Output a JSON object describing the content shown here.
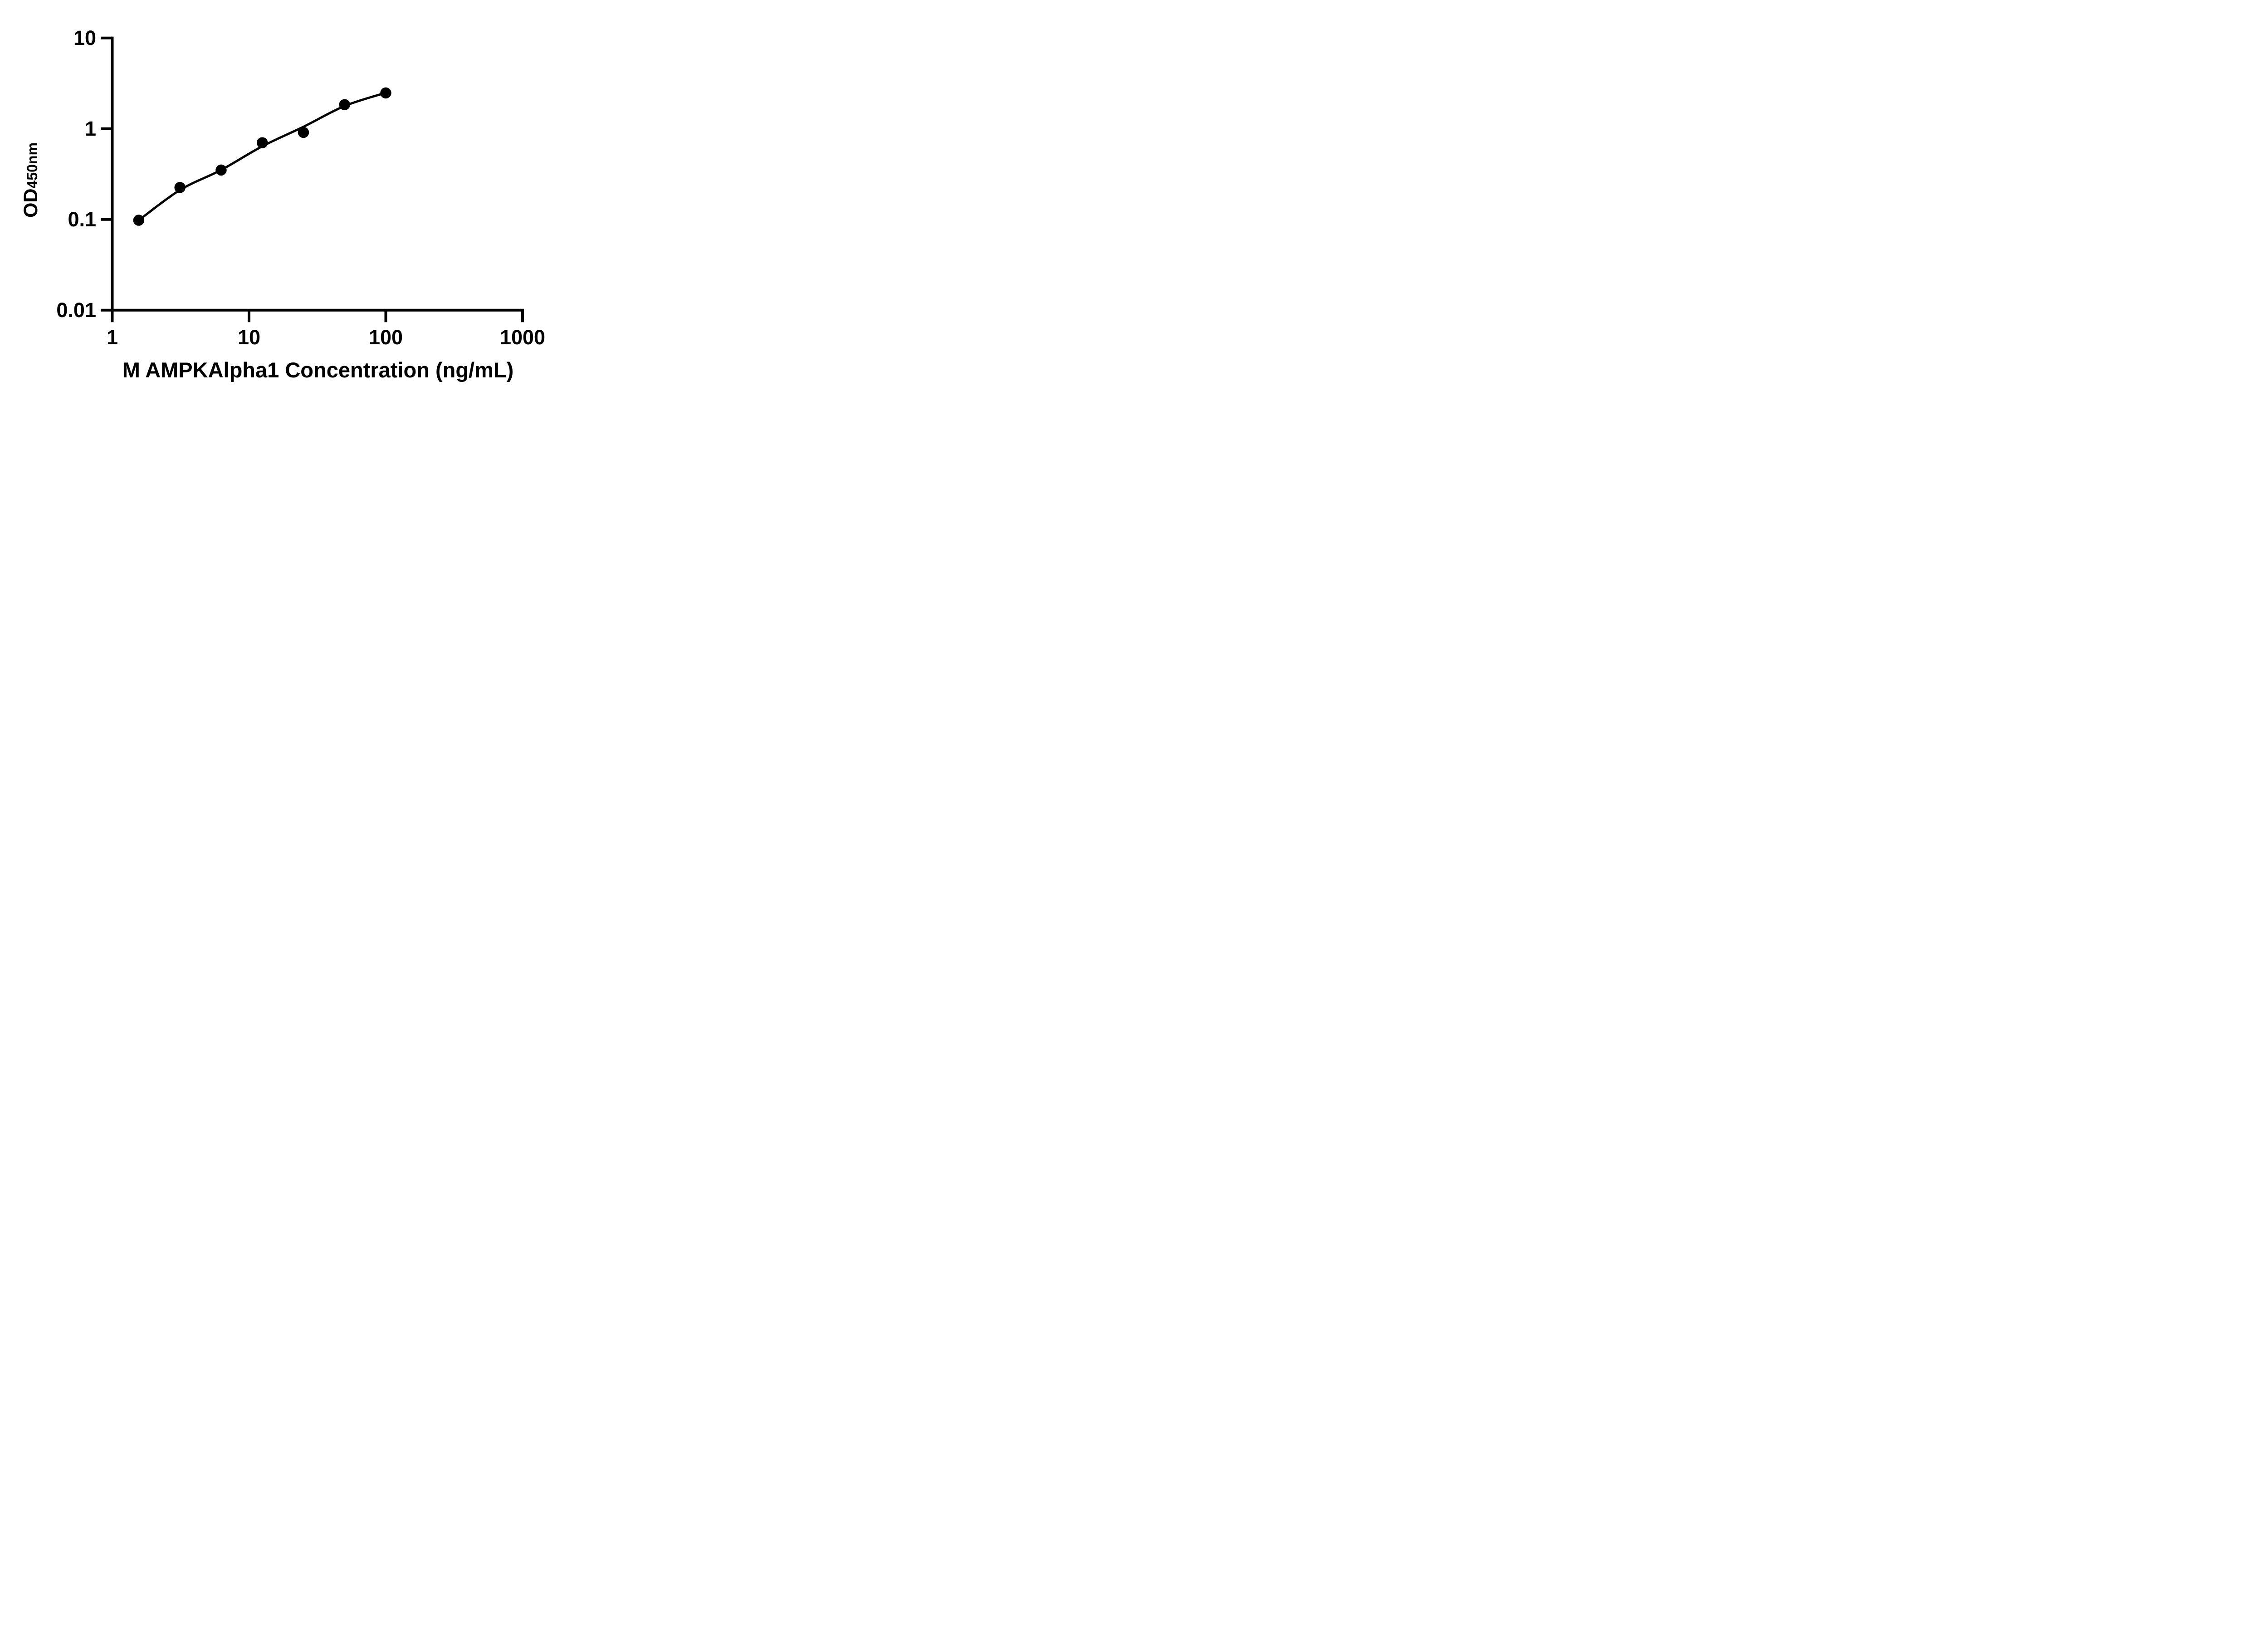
{
  "chart_data": {
    "type": "scatter",
    "title": "",
    "xlabel": "M AMPKAlpha1 Concentration (ng/mL)",
    "ylabel": "OD",
    "ylabel_subscript": "450nm",
    "x_scale": "log10",
    "y_scale": "log10",
    "xlim": [
      1,
      1000
    ],
    "ylim": [
      0.01,
      10
    ],
    "x_tick_values": [
      1,
      10,
      100,
      1000
    ],
    "x_tick_labels": [
      "1",
      "10",
      "100",
      "1000"
    ],
    "y_tick_values": [
      10,
      1,
      0.1,
      0.01
    ],
    "y_tick_labels": [
      "10",
      "1",
      "0.1",
      "0.01"
    ],
    "grid": false,
    "legend": null,
    "marker_color": "#000000",
    "line_color": "#000000",
    "background_color": "#ffffff",
    "points": [
      {
        "x": 1.5625,
        "y": 0.098
      },
      {
        "x": 3.125,
        "y": 0.225
      },
      {
        "x": 6.25,
        "y": 0.35
      },
      {
        "x": 12.5,
        "y": 0.7
      },
      {
        "x": 25,
        "y": 0.91
      },
      {
        "x": 50,
        "y": 1.84
      },
      {
        "x": 100,
        "y": 2.48
      }
    ],
    "fit_curve": [
      {
        "x": 1.5625,
        "y": 0.098
      },
      {
        "x": 3.125,
        "y": 0.211
      },
      {
        "x": 6.25,
        "y": 0.351
      },
      {
        "x": 12.5,
        "y": 0.64
      },
      {
        "x": 25,
        "y": 1.05
      },
      {
        "x": 50,
        "y": 1.78
      },
      {
        "x": 100,
        "y": 2.49
      }
    ]
  }
}
